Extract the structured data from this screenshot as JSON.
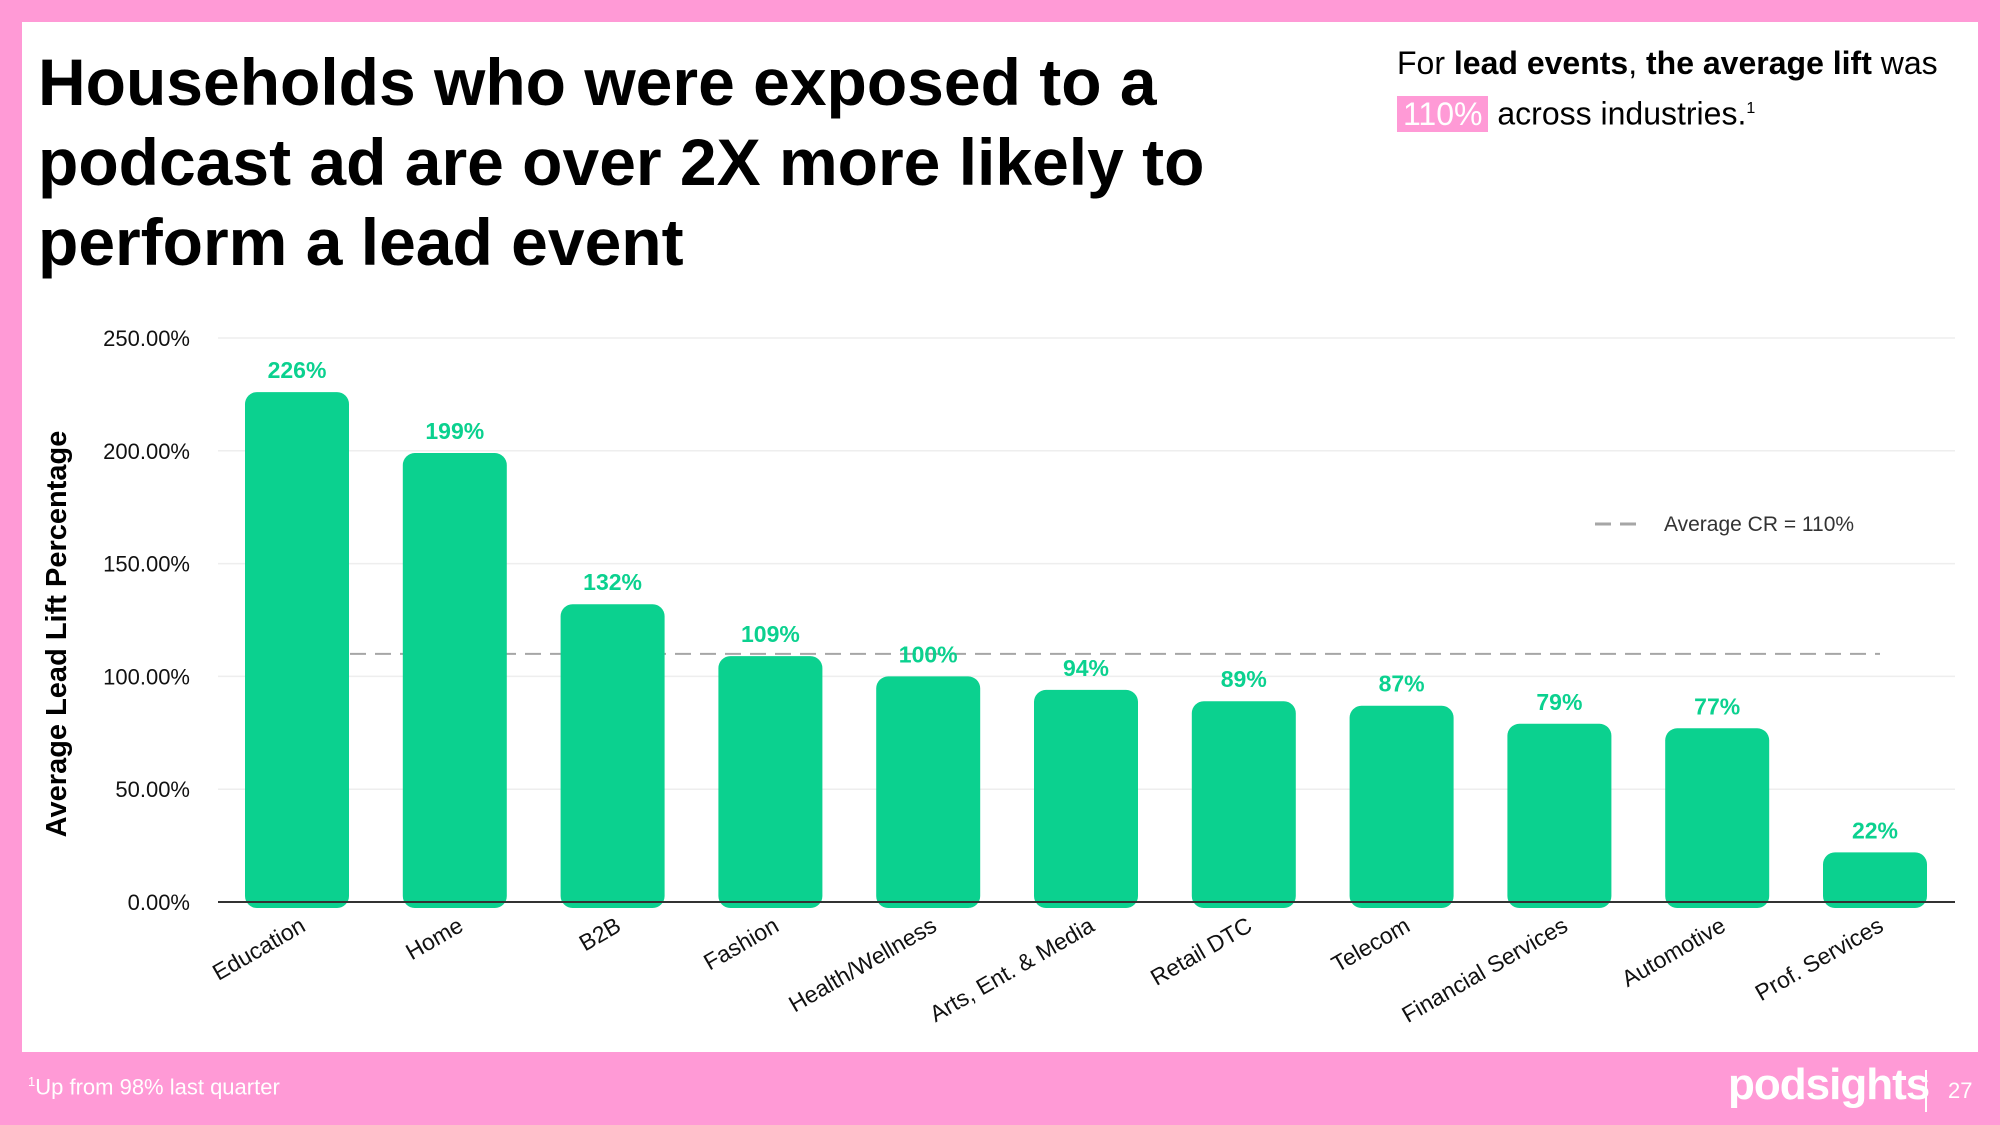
{
  "slide": {
    "title": "Households who were exposed to a podcast ad are over 2X more likely to perform a lead event",
    "callout": {
      "part1": "For ",
      "bold1": "lead events",
      "part2": ", ",
      "bold2": "the average lift",
      "part3": " was ",
      "highlight": "110%",
      "part4": " across industries.",
      "sup": "1"
    },
    "footnote": {
      "sup": "1",
      "text": "Up from 98% last quarter"
    },
    "brand": "podsights",
    "page_number": "27"
  },
  "colors": {
    "border": "#ff9ad6",
    "bar": "#0bd18f",
    "label": "#0bd18f",
    "reference_line": "#a6a6a6",
    "axis": "#333333"
  },
  "chart_data": {
    "type": "bar",
    "title": "",
    "xlabel": "",
    "ylabel": "Average Lead Lift Percentage",
    "ylim": [
      0,
      250
    ],
    "yticks": [
      0,
      50,
      100,
      150,
      200,
      250
    ],
    "ytick_labels": [
      "0.00%",
      "50.00%",
      "100.00%",
      "150.00%",
      "200.00%",
      "250.00%"
    ],
    "categories": [
      "Education",
      "Home",
      "B2B",
      "Fashion",
      "Health/Wellness",
      "Arts, Ent. & Media",
      "Retail DTC",
      "Telecom",
      "Financial Services",
      "Automotive",
      "Prof. Services"
    ],
    "values": [
      226,
      199,
      132,
      109,
      100,
      94,
      89,
      87,
      79,
      77,
      22
    ],
    "data_labels": [
      "226%",
      "199%",
      "132%",
      "109%",
      "100%",
      "94%",
      "89%",
      "87%",
      "79%",
      "77%",
      "22%"
    ],
    "reference_line": {
      "value": 110,
      "label": "Average CR = 110%"
    },
    "grid": true,
    "legend": "top-right"
  }
}
